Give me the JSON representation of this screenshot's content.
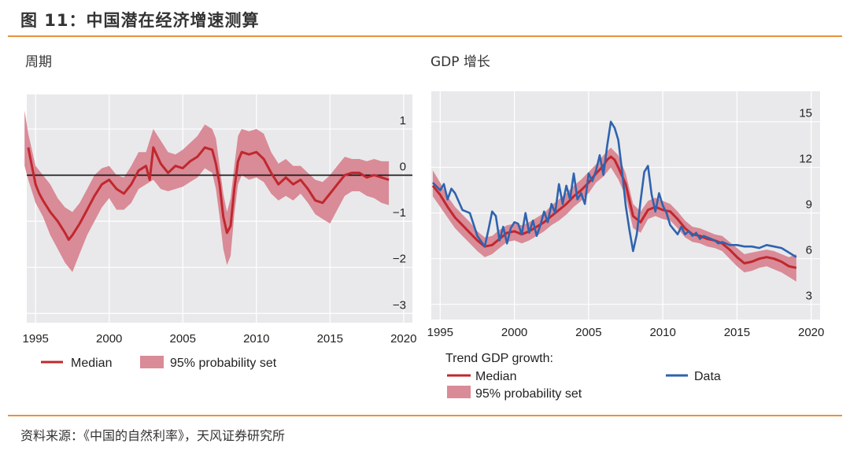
{
  "header": {
    "title": "图 11：中国潜在经济增速测算"
  },
  "footer": {
    "source": "资料来源：《中国的自然利率》，天风证券研究所"
  },
  "panels": {
    "left": {
      "title": "周期",
      "legend": {
        "median": "Median",
        "band": "95% probability set"
      }
    },
    "right": {
      "title": "GDP 增长",
      "legend": {
        "heading": "Trend GDP growth:",
        "median": "Median",
        "data": "Data",
        "band": "95% probability set"
      }
    }
  },
  "colors": {
    "median": "#c0282e",
    "band": "#d98b97",
    "data": "#2f63ae",
    "plot_bg": "#e9e9eb",
    "accent": "#e8923a"
  },
  "chart_data": [
    {
      "type": "line",
      "title": "周期",
      "xlabel": "",
      "ylabel": "",
      "xlim": [
        1994.4,
        2020.6
      ],
      "ylim": [
        -3.2,
        1.75
      ],
      "x_ticks": [
        1995,
        2000,
        2005,
        2010,
        2015,
        2020
      ],
      "y_ticks": [
        1,
        0,
        -1,
        -2,
        -3
      ],
      "y_axis_side": "right",
      "zero_line": true,
      "grid": true,
      "legend_position": "bottom",
      "series": [
        {
          "name": "Median",
          "x": [
            1994.5,
            1994.75,
            1995,
            1995.25,
            1995.5,
            1996,
            1996.5,
            1997,
            1997.25,
            1997.5,
            1998,
            1998.5,
            1999,
            1999.5,
            2000,
            2000.5,
            2001,
            2001.5,
            2002,
            2002.5,
            2002.75,
            2003,
            2003.5,
            2004,
            2004.5,
            2005,
            2005.5,
            2006,
            2006.5,
            2007,
            2007.25,
            2007.5,
            2007.75,
            2008,
            2008.25,
            2008.5,
            2008.75,
            2009,
            2009.5,
            2010,
            2010.5,
            2011,
            2011.5,
            2012,
            2012.5,
            2013,
            2013.5,
            2014,
            2014.5,
            2015,
            2015.5,
            2016,
            2016.5,
            2017,
            2017.5,
            2018,
            2018.5,
            2019
          ],
          "values": [
            0.6,
            0.2,
            -0.2,
            -0.4,
            -0.55,
            -0.8,
            -1.0,
            -1.25,
            -1.4,
            -1.3,
            -1.05,
            -0.75,
            -0.45,
            -0.2,
            -0.1,
            -0.3,
            -0.4,
            -0.2,
            0.1,
            0.2,
            -0.1,
            0.6,
            0.25,
            0.05,
            0.2,
            0.15,
            0.3,
            0.4,
            0.6,
            0.55,
            0.25,
            -0.2,
            -0.9,
            -1.25,
            -1.1,
            -0.3,
            0.3,
            0.5,
            0.45,
            0.5,
            0.35,
            0.05,
            -0.2,
            -0.05,
            -0.2,
            -0.1,
            -0.3,
            -0.55,
            -0.6,
            -0.4,
            -0.2,
            0.0,
            0.05,
            0.05,
            -0.05,
            0.0,
            -0.05,
            -0.1
          ]
        }
      ],
      "band": {
        "name": "95% probability set",
        "x": [
          1994.25,
          1994.5,
          1995,
          1995.5,
          1996,
          1996.5,
          1997,
          1997.5,
          1998,
          1998.5,
          1999,
          1999.5,
          2000,
          2000.5,
          2001,
          2001.5,
          2002,
          2002.5,
          2003,
          2003.5,
          2004,
          2004.5,
          2005,
          2005.5,
          2006,
          2006.5,
          2007,
          2007.25,
          2007.5,
          2007.75,
          2008,
          2008.25,
          2008.5,
          2008.75,
          2009,
          2009.5,
          2010,
          2010.5,
          2011,
          2011.5,
          2012,
          2012.5,
          2013,
          2013.5,
          2014,
          2014.5,
          2015,
          2015.5,
          2016,
          2016.5,
          2017,
          2017.5,
          2018,
          2018.5,
          2019
        ],
        "upper": [
          1.4,
          0.9,
          0.2,
          0.0,
          -0.2,
          -0.5,
          -0.7,
          -0.8,
          -0.6,
          -0.3,
          0.0,
          0.15,
          0.2,
          0.0,
          -0.05,
          0.2,
          0.5,
          0.5,
          1.0,
          0.75,
          0.5,
          0.45,
          0.55,
          0.7,
          0.85,
          1.1,
          1.0,
          0.8,
          0.2,
          -0.4,
          -0.8,
          -0.5,
          0.2,
          0.85,
          1.0,
          0.95,
          1.0,
          0.9,
          0.5,
          0.25,
          0.35,
          0.2,
          0.2,
          0.05,
          -0.1,
          -0.15,
          0.0,
          0.2,
          0.4,
          0.35,
          0.35,
          0.3,
          0.35,
          0.3,
          0.3
        ],
        "lower": [
          0.2,
          -0.1,
          -0.6,
          -0.9,
          -1.3,
          -1.6,
          -1.9,
          -2.1,
          -1.7,
          -1.3,
          -1.0,
          -0.7,
          -0.5,
          -0.75,
          -0.75,
          -0.6,
          -0.3,
          -0.2,
          -0.1,
          -0.3,
          -0.35,
          -0.3,
          -0.25,
          -0.15,
          -0.05,
          0.15,
          0.05,
          -0.3,
          -0.9,
          -1.6,
          -1.95,
          -1.75,
          -0.85,
          -0.2,
          0.0,
          -0.1,
          -0.05,
          -0.15,
          -0.4,
          -0.55,
          -0.45,
          -0.55,
          -0.4,
          -0.6,
          -0.85,
          -0.95,
          -1.05,
          -0.75,
          -0.45,
          -0.35,
          -0.35,
          -0.45,
          -0.5,
          -0.6,
          -0.65
        ]
      }
    },
    {
      "type": "line",
      "title": "GDP 增长",
      "xlabel": "",
      "ylabel": "",
      "xlim": [
        1994.4,
        2020.6
      ],
      "ylim": [
        2.0,
        17.0
      ],
      "x_ticks": [
        1995,
        2000,
        2005,
        2010,
        2015,
        2020
      ],
      "y_ticks": [
        15,
        12,
        9,
        6,
        3
      ],
      "y_axis_side": "right",
      "grid": true,
      "legend_position": "bottom",
      "series": [
        {
          "name": "Median",
          "x": [
            1994.5,
            1995,
            1995.5,
            1996,
            1996.5,
            1997,
            1997.5,
            1998,
            1998.5,
            1999,
            1999.5,
            2000,
            2000.5,
            2001,
            2001.5,
            2002,
            2002.5,
            2003,
            2003.5,
            2004,
            2004.5,
            2005,
            2005.5,
            2006,
            2006.25,
            2006.5,
            2006.75,
            2007,
            2007.5,
            2008,
            2008.5,
            2009,
            2009.5,
            2010,
            2010.5,
            2011,
            2011.5,
            2012,
            2012.5,
            2013,
            2013.5,
            2014,
            2014.5,
            2015,
            2015.5,
            2016,
            2016.5,
            2017,
            2017.5,
            2018,
            2018.5,
            2019
          ],
          "values": [
            10.8,
            10.2,
            9.4,
            8.7,
            8.2,
            7.7,
            7.2,
            6.8,
            6.9,
            7.3,
            7.7,
            7.8,
            7.6,
            7.8,
            8.1,
            8.4,
            8.8,
            9.2,
            9.6,
            10.1,
            10.5,
            11.0,
            11.6,
            12.1,
            12.5,
            12.7,
            12.5,
            12.0,
            10.9,
            8.8,
            8.4,
            9.2,
            9.4,
            9.2,
            9.1,
            8.6,
            8.0,
            7.6,
            7.5,
            7.3,
            7.2,
            7.0,
            6.6,
            6.1,
            5.7,
            5.8,
            6.0,
            6.1,
            6.0,
            5.8,
            5.5,
            5.4
          ]
        },
        {
          "name": "Data",
          "x": [
            1994.5,
            1995,
            1995.25,
            1995.5,
            1995.75,
            1996,
            1996.5,
            1997,
            1997.5,
            1998,
            1998.25,
            1998.5,
            1998.75,
            1999,
            1999.25,
            1999.5,
            1999.75,
            2000,
            2000.25,
            2000.5,
            2000.75,
            2001,
            2001.25,
            2001.5,
            2001.75,
            2002,
            2002.25,
            2002.5,
            2002.75,
            2003,
            2003.25,
            2003.5,
            2003.75,
            2004,
            2004.25,
            2004.5,
            2004.75,
            2005,
            2005.25,
            2005.5,
            2005.75,
            2006,
            2006.25,
            2006.5,
            2006.75,
            2007,
            2007.25,
            2007.5,
            2007.75,
            2008,
            2008.25,
            2008.5,
            2008.75,
            2009,
            2009.25,
            2009.5,
            2009.75,
            2010,
            2010.25,
            2010.5,
            2010.75,
            2011,
            2011.25,
            2011.5,
            2011.75,
            2012,
            2012.25,
            2012.5,
            2012.75,
            2013,
            2013.25,
            2013.5,
            2013.75,
            2014,
            2014.5,
            2015,
            2015.5,
            2016,
            2016.5,
            2017,
            2017.5,
            2018,
            2018.5,
            2019
          ],
          "values": [
            11.0,
            10.5,
            10.9,
            9.9,
            10.6,
            10.3,
            9.2,
            9.0,
            7.5,
            6.8,
            7.9,
            9.1,
            8.8,
            7.2,
            8.1,
            7.0,
            8.0,
            8.4,
            8.3,
            7.6,
            9.0,
            7.7,
            8.5,
            7.5,
            8.2,
            9.1,
            8.4,
            9.6,
            9.0,
            10.9,
            9.6,
            10.8,
            9.9,
            11.6,
            9.9,
            10.3,
            9.6,
            11.6,
            11.1,
            11.8,
            12.8,
            11.5,
            13.4,
            15.0,
            14.6,
            13.8,
            11.8,
            9.5,
            7.9,
            6.5,
            7.6,
            9.8,
            11.7,
            12.1,
            10.2,
            9.1,
            10.3,
            9.5,
            9.0,
            8.2,
            7.9,
            7.6,
            8.1,
            7.6,
            7.8,
            7.5,
            7.7,
            7.3,
            7.5,
            7.4,
            7.3,
            7.2,
            7.0,
            7.1,
            6.9,
            6.9,
            6.8,
            6.8,
            6.7,
            6.9,
            6.8,
            6.7,
            6.4,
            6.1
          ],
          "note_shift": true
        }
      ],
      "band": {
        "name": "95% probability set",
        "x": [
          1994.5,
          1995,
          1995.5,
          1996,
          1996.5,
          1997,
          1997.5,
          1998,
          1998.5,
          1999,
          1999.5,
          2000,
          2000.5,
          2001,
          2001.5,
          2002,
          2002.5,
          2003,
          2003.5,
          2004,
          2004.5,
          2005,
          2005.5,
          2006,
          2006.5,
          2007,
          2007.5,
          2008,
          2008.5,
          2009,
          2009.5,
          2010,
          2010.5,
          2011,
          2011.5,
          2012,
          2012.5,
          2013,
          2013.5,
          2014,
          2014.5,
          2015,
          2015.5,
          2016,
          2016.5,
          2017,
          2017.5,
          2018,
          2018.5,
          2019
        ],
        "upper": [
          11.8,
          11.0,
          10.1,
          9.4,
          8.9,
          8.4,
          7.8,
          7.4,
          7.5,
          7.9,
          8.2,
          8.3,
          8.2,
          8.4,
          8.7,
          9.0,
          9.5,
          9.9,
          10.3,
          10.8,
          11.2,
          11.7,
          12.2,
          12.8,
          13.3,
          12.8,
          11.6,
          9.6,
          9.1,
          9.8,
          10.0,
          9.8,
          9.6,
          9.1,
          8.5,
          8.1,
          8.0,
          7.8,
          7.6,
          7.5,
          7.1,
          6.7,
          6.3,
          6.4,
          6.5,
          6.6,
          6.5,
          6.3,
          6.1,
          6.3
        ],
        "lower": [
          10.1,
          9.4,
          8.7,
          8.0,
          7.5,
          7.0,
          6.5,
          6.1,
          6.3,
          6.7,
          7.1,
          7.2,
          7.0,
          7.2,
          7.5,
          7.8,
          8.2,
          8.5,
          8.9,
          9.4,
          9.8,
          10.3,
          11.0,
          11.4,
          12.0,
          11.2,
          10.1,
          8.0,
          7.7,
          8.6,
          8.8,
          8.6,
          8.5,
          8.0,
          7.4,
          7.1,
          7.0,
          6.8,
          6.7,
          6.5,
          6.0,
          5.5,
          5.1,
          5.2,
          5.4,
          5.5,
          5.3,
          5.1,
          4.8,
          4.5
        ]
      }
    }
  ]
}
